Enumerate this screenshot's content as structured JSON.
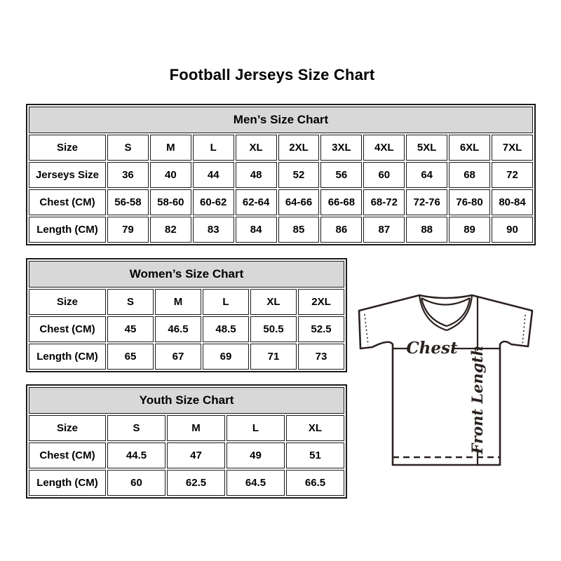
{
  "page_title": "Football Jerseys Size Chart",
  "colors": {
    "header_bg": "#d8d8d8",
    "border": "#1a1a1a",
    "jersey_line": "#2b2220"
  },
  "tables": [
    {
      "id": "mens",
      "title": "Men’s Size Chart",
      "rows": [
        [
          "Size",
          "S",
          "M",
          "L",
          "XL",
          "2XL",
          "3XL",
          "4XL",
          "5XL",
          "6XL",
          "7XL"
        ],
        [
          "Jerseys Size",
          "36",
          "40",
          "44",
          "48",
          "52",
          "56",
          "60",
          "64",
          "68",
          "72"
        ],
        [
          "Chest (CM)",
          "56-58",
          "58-60",
          "60-62",
          "62-64",
          "64-66",
          "66-68",
          "68-72",
          "72-76",
          "76-80",
          "80-84"
        ],
        [
          "Length (CM)",
          "79",
          "82",
          "83",
          "84",
          "85",
          "86",
          "87",
          "88",
          "89",
          "90"
        ]
      ]
    },
    {
      "id": "womens",
      "title": "Women’s Size Chart",
      "rows": [
        [
          "Size",
          "S",
          "M",
          "L",
          "XL",
          "2XL"
        ],
        [
          "Chest (CM)",
          "45",
          "46.5",
          "48.5",
          "50.5",
          "52.5"
        ],
        [
          "Length (CM)",
          "65",
          "67",
          "69",
          "71",
          "73"
        ]
      ]
    },
    {
      "id": "youth",
      "title": "Youth Size Chart",
      "rows": [
        [
          "Size",
          "S",
          "M",
          "L",
          "XL"
        ],
        [
          "Chest (CM)",
          "44.5",
          "47",
          "49",
          "51"
        ],
        [
          "Length (CM)",
          "60",
          "62.5",
          "64.5",
          "66.5"
        ]
      ]
    }
  ],
  "jersey_diagram": {
    "chest_label": "Chest",
    "front_length_label": "Front Length"
  }
}
